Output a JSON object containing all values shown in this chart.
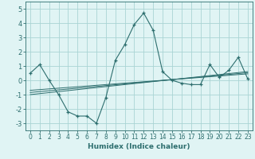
{
  "xlabel": "Humidex (Indice chaleur)",
  "x": [
    0,
    1,
    2,
    3,
    4,
    5,
    6,
    7,
    8,
    9,
    10,
    11,
    12,
    13,
    14,
    15,
    16,
    17,
    18,
    19,
    20,
    21,
    22,
    23
  ],
  "y_main": [
    0.5,
    1.1,
    0.0,
    -1.0,
    -2.2,
    -2.5,
    -2.5,
    -3.0,
    -1.2,
    1.4,
    2.5,
    3.9,
    4.7,
    3.5,
    0.6,
    0.0,
    -0.2,
    -0.3,
    -0.3,
    1.1,
    0.2,
    0.7,
    1.6,
    0.1
  ],
  "y_line1": [
    -1.0,
    -0.93,
    -0.86,
    -0.79,
    -0.72,
    -0.65,
    -0.58,
    -0.51,
    -0.44,
    -0.37,
    -0.3,
    -0.23,
    -0.16,
    -0.09,
    -0.02,
    0.05,
    0.12,
    0.19,
    0.26,
    0.33,
    0.4,
    0.47,
    0.54,
    0.61
  ],
  "y_line2": [
    -0.85,
    -0.79,
    -0.73,
    -0.67,
    -0.61,
    -0.55,
    -0.49,
    -0.43,
    -0.37,
    -0.31,
    -0.25,
    -0.19,
    -0.13,
    -0.07,
    -0.01,
    0.05,
    0.11,
    0.17,
    0.23,
    0.29,
    0.35,
    0.41,
    0.47,
    0.53
  ],
  "y_line3": [
    -0.7,
    -0.65,
    -0.6,
    -0.55,
    -0.5,
    -0.45,
    -0.4,
    -0.35,
    -0.3,
    -0.25,
    -0.2,
    -0.15,
    -0.1,
    -0.05,
    0.0,
    0.05,
    0.1,
    0.15,
    0.2,
    0.25,
    0.3,
    0.35,
    0.4,
    0.45
  ],
  "line_color": "#2d6e6e",
  "bg_color": "#e0f4f4",
  "grid_color": "#aad4d4",
  "ylim": [
    -3.5,
    5.5
  ],
  "xlim": [
    -0.5,
    23.5
  ],
  "yticks": [
    -3,
    -2,
    -1,
    0,
    1,
    2,
    3,
    4,
    5
  ],
  "xticks": [
    0,
    1,
    2,
    3,
    4,
    5,
    6,
    7,
    8,
    9,
    10,
    11,
    12,
    13,
    14,
    15,
    16,
    17,
    18,
    19,
    20,
    21,
    22,
    23
  ]
}
